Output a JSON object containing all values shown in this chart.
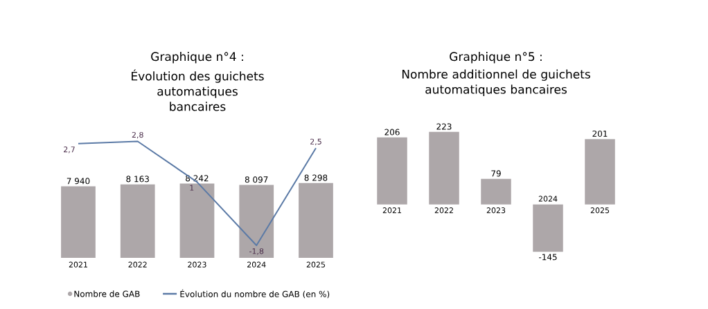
{
  "chart_data": [
    {
      "type": "bar",
      "title": "Graphique n°4 :",
      "subtitle": "Évolution des guichets automatiques bancaires",
      "categories": [
        "2021",
        "2022",
        "2023",
        "2024",
        "2025"
      ],
      "tick_labels": "x",
      "legend": "bottom",
      "series": [
        {
          "name": "Nombre de GAB",
          "color": "#ada7a9",
          "values": [
            7940,
            8163,
            8242,
            8097,
            8298
          ],
          "value_labels": [
            "7 940",
            "8 163",
            "8 242",
            "8 097",
            "8 298"
          ]
        },
        {
          "name": "Évolution du nombre de GAB (en %)",
          "type": "line",
          "axis": "y2",
          "color": "#5b7aa6",
          "values": [
            2.7,
            2.8,
            1,
            -1.8,
            2.5
          ],
          "value_labels": [
            "2,7",
            "2,8",
            "1",
            "-1,8",
            "2,5"
          ]
        }
      ]
    },
    {
      "type": "bar",
      "title": "Graphique n°5 :",
      "subtitle": "Nombre additionnel de guichets automatiques bancaires",
      "categories": [
        "2021",
        "2022",
        "2023",
        "2024",
        "2025"
      ],
      "tick_labels": "x",
      "values": [
        206,
        223,
        79,
        -145,
        201
      ],
      "color": "#ada7a9",
      "data_labels": true
    }
  ]
}
